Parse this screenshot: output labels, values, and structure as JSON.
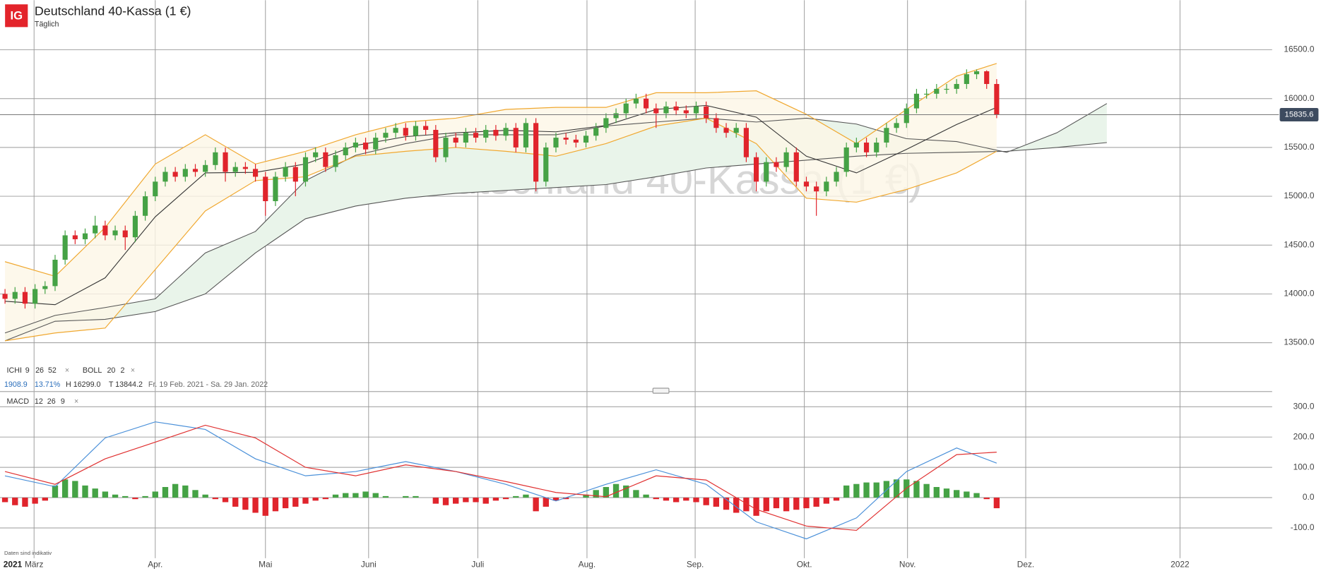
{
  "ui": {
    "logo": "IG",
    "subtitle": "Täglich",
    "year_label": "2021",
    "footer": "Daten sind indikativ",
    "close_icon": "×",
    "ichi": {
      "label": "ICHI",
      "params": [
        9,
        26,
        52
      ]
    },
    "boll": {
      "label": "BOLL",
      "params": [
        20,
        2
      ]
    },
    "macd": {
      "label": "MACD",
      "params": [
        12,
        26,
        9
      ]
    },
    "stats": [
      "1908.9",
      "13.71%",
      "H 16299.0",
      "T 13844.2",
      "Fr. 19 Feb. 2021 - Sa. 29 Jan. 2022"
    ]
  },
  "chart_data": [
    {
      "type": "candlestick",
      "title": "Deutschland 40-Kassa (1 €)",
      "up_color": "#45a245",
      "down_color": "#e0242c",
      "xlim": [
        -0.5,
        126.5
      ],
      "ylim": [
        13000,
        17000
      ],
      "xticks": [
        {
          "value": 2.9,
          "label": "März"
        },
        {
          "value": 15.0,
          "label": "Apr."
        },
        {
          "value": 26.0,
          "label": "Mai"
        },
        {
          "value": 36.3,
          "label": "Juni"
        },
        {
          "value": 47.2,
          "label": "Juli"
        },
        {
          "value": 58.1,
          "label": "Aug."
        },
        {
          "value": 68.9,
          "label": "Sep."
        },
        {
          "value": 79.8,
          "label": "Okt."
        },
        {
          "value": 90.1,
          "label": "Nov."
        },
        {
          "value": 101.9,
          "label": "Dez."
        },
        {
          "value": 117.3,
          "label": "2022"
        }
      ],
      "yticks": [
        {
          "value": 13500,
          "label": "13500.0"
        },
        {
          "value": 14000,
          "label": "14000.0"
        },
        {
          "value": 14500,
          "label": "14500.0"
        },
        {
          "value": 15000,
          "label": "15000.0"
        },
        {
          "value": 15500,
          "label": "15500.0"
        },
        {
          "value": 16000,
          "label": "16000.0"
        },
        {
          "value": 16500,
          "label": "16500.0"
        }
      ],
      "last_price": 15835.6,
      "open": [
        14000,
        13950,
        14020,
        13900,
        14050,
        14080,
        14350,
        14600,
        14560,
        14620,
        14700,
        14600,
        14650,
        14580,
        14800,
        15000,
        15150,
        15250,
        15200,
        15280,
        15250,
        15320,
        15450,
        15250,
        15300,
        15280,
        15200,
        14950,
        15200,
        15300,
        15150,
        15400,
        15450,
        15300,
        15420,
        15500,
        15550,
        15480,
        15600,
        15650,
        15700,
        15620,
        15720,
        15680,
        15400,
        15600,
        15550,
        15650,
        15600,
        15680,
        15620,
        15700,
        15500,
        15750,
        15150,
        15500,
        15600,
        15580,
        15550,
        15620,
        15700,
        15800,
        15850,
        15950,
        16000,
        15900,
        15850,
        15920,
        15880,
        15850,
        15920,
        15800,
        15700,
        15650,
        15700,
        15400,
        15150,
        15350,
        15300,
        15450,
        15150,
        15100,
        15050,
        15150,
        15250,
        15500,
        15550,
        15450,
        15550,
        15700,
        15750,
        15900,
        16050,
        16050,
        16100,
        16100,
        16150,
        16250,
        16280,
        16150
      ],
      "high": [
        14050,
        14070,
        14070,
        14100,
        14130,
        14400,
        14650,
        14650,
        14670,
        14800,
        14750,
        14700,
        14700,
        14850,
        15050,
        15200,
        15300,
        15300,
        15330,
        15330,
        15370,
        15500,
        15500,
        15350,
        15350,
        15330,
        15250,
        15250,
        15350,
        15350,
        15450,
        15500,
        15500,
        15470,
        15550,
        15600,
        15600,
        15650,
        15700,
        15750,
        15750,
        15770,
        15770,
        15730,
        15650,
        15650,
        15700,
        15700,
        15730,
        15730,
        15750,
        15750,
        15800,
        15800,
        15550,
        15650,
        15650,
        15630,
        15670,
        15750,
        15850,
        15900,
        16000,
        16050,
        16050,
        15950,
        15970,
        15970,
        15930,
        15970,
        15970,
        15850,
        15750,
        15750,
        15750,
        15450,
        15400,
        15400,
        15500,
        15500,
        15200,
        15150,
        15200,
        15300,
        15550,
        15600,
        15600,
        15600,
        15750,
        15800,
        15950,
        16100,
        16100,
        16150,
        16150,
        16200,
        16300,
        16299,
        16290,
        16200
      ],
      "low": [
        13900,
        13900,
        13850,
        13850,
        14000,
        14030,
        14300,
        14510,
        14510,
        14570,
        14550,
        14550,
        14450,
        14530,
        14750,
        14950,
        15100,
        15150,
        15150,
        15200,
        15200,
        15270,
        15150,
        15200,
        15230,
        15150,
        14800,
        14900,
        15150,
        15000,
        15100,
        15350,
        15250,
        15250,
        15370,
        15450,
        15430,
        15430,
        15550,
        15600,
        15570,
        15570,
        15630,
        15350,
        15350,
        15500,
        15500,
        15550,
        15550,
        15570,
        15570,
        15450,
        15450,
        15050,
        15100,
        15450,
        15530,
        15500,
        15500,
        15570,
        15650,
        15750,
        15800,
        15900,
        15850,
        15700,
        15800,
        15830,
        15800,
        15800,
        15750,
        15650,
        15600,
        15600,
        15350,
        15050,
        15100,
        15250,
        15250,
        15100,
        15050,
        14800,
        15000,
        15100,
        15200,
        15450,
        15400,
        15400,
        15500,
        15650,
        15700,
        15850,
        16000,
        16000,
        16050,
        16050,
        16100,
        16200,
        16100,
        15800
      ],
      "close": [
        13950,
        14020,
        13900,
        14050,
        14080,
        14350,
        14600,
        14560,
        14620,
        14700,
        14600,
        14650,
        14580,
        14800,
        15000,
        15150,
        15250,
        15200,
        15280,
        15250,
        15320,
        15450,
        15250,
        15300,
        15280,
        15200,
        14950,
        15200,
        15300,
        15150,
        15400,
        15450,
        15300,
        15420,
        15500,
        15550,
        15480,
        15600,
        15650,
        15700,
        15620,
        15720,
        15680,
        15400,
        15600,
        15550,
        15650,
        15600,
        15680,
        15620,
        15700,
        15500,
        15750,
        15150,
        15500,
        15600,
        15580,
        15550,
        15620,
        15700,
        15800,
        15850,
        15950,
        16000,
        15900,
        15850,
        15920,
        15880,
        15850,
        15920,
        15800,
        15700,
        15650,
        15700,
        15400,
        15150,
        15350,
        15300,
        15450,
        15150,
        15100,
        15050,
        15150,
        15250,
        15500,
        15550,
        15450,
        15550,
        15700,
        15750,
        15900,
        16050,
        16050,
        16100,
        16100,
        16150,
        16250,
        16280,
        16150,
        15835.6
      ],
      "bollinger": {
        "color": "#f0a830",
        "middle_color": "#333333",
        "fill": "#fdf6e6",
        "x": [
          0,
          5,
          10,
          15,
          20,
          25,
          30,
          35,
          40,
          45,
          50,
          55,
          60,
          65,
          70,
          75,
          80,
          85,
          90,
          95,
          99
        ],
        "upper": [
          14330,
          14180,
          14680,
          15330,
          15630,
          15330,
          15460,
          15630,
          15760,
          15800,
          15890,
          15910,
          15910,
          16060,
          16060,
          16080,
          15840,
          15540,
          15890,
          16230,
          16360
        ],
        "middle": [
          13925,
          13890,
          14165,
          14790,
          15240,
          15245,
          15330,
          15520,
          15610,
          15650,
          15675,
          15660,
          15725,
          15890,
          15930,
          15810,
          15410,
          15240,
          15480,
          15735,
          15910
        ],
        "lower": [
          13520,
          13600,
          13650,
          14250,
          14850,
          15160,
          15200,
          15410,
          15460,
          15500,
          15460,
          15410,
          15540,
          15720,
          15800,
          15540,
          14980,
          14940,
          15070,
          15240,
          15460
        ]
      },
      "ichimoku": {
        "color": "#555555",
        "fill": "#e9f4ea",
        "x": [
          0,
          5,
          10,
          15,
          20,
          25,
          30,
          35,
          40,
          45,
          50,
          55,
          60,
          65,
          70,
          75,
          80,
          85,
          90,
          95,
          100,
          105,
          110
        ],
        "span_a": [
          13600,
          13780,
          13860,
          13950,
          14420,
          14640,
          15160,
          15420,
          15540,
          15630,
          15630,
          15630,
          15720,
          15760,
          15800,
          15760,
          15800,
          15740,
          15590,
          15560,
          15450,
          15650,
          15950
        ],
        "span_b": [
          13520,
          13720,
          13740,
          13820,
          14000,
          14420,
          14770,
          14900,
          14980,
          15030,
          15060,
          15090,
          15120,
          15200,
          15290,
          15330,
          15370,
          15410,
          15440,
          15450,
          15460,
          15500,
          15550
        ]
      }
    },
    {
      "type": "macd",
      "xlim": [
        -0.5,
        126.5
      ],
      "ylim": [
        -200,
        350
      ],
      "yticks": [
        {
          "value": -100,
          "label": "-100.0"
        },
        {
          "value": 0,
          "label": "0.0"
        },
        {
          "value": 100,
          "label": "100.0"
        },
        {
          "value": 200,
          "label": "200.0"
        },
        {
          "value": 300,
          "label": "300.0"
        }
      ],
      "histogram": [
        -15,
        -25,
        -30,
        -20,
        -10,
        40,
        60,
        55,
        40,
        30,
        20,
        10,
        5,
        -5,
        5,
        20,
        35,
        45,
        40,
        25,
        10,
        -5,
        -15,
        -30,
        -40,
        -50,
        -60,
        -45,
        -35,
        -30,
        -20,
        -10,
        -5,
        10,
        15,
        15,
        20,
        15,
        5,
        0,
        5,
        5,
        0,
        -20,
        -25,
        -20,
        -15,
        -15,
        -20,
        -10,
        -5,
        5,
        10,
        -45,
        -30,
        -10,
        -5,
        0,
        10,
        25,
        35,
        45,
        40,
        25,
        10,
        -5,
        -10,
        -15,
        -10,
        -15,
        -25,
        -30,
        -40,
        -50,
        -45,
        -60,
        -45,
        -35,
        -45,
        -40,
        -35,
        -30,
        -20,
        -10,
        40,
        45,
        50,
        50,
        55,
        60,
        60,
        55,
        45,
        35,
        30,
        25,
        20,
        15,
        -5,
        -35
      ],
      "pos_color": "#45a245",
      "neg_color": "#e0242c",
      "x": [
        0,
        5,
        10,
        15,
        20,
        25,
        30,
        35,
        40,
        45,
        50,
        55,
        60,
        65,
        70,
        75,
        80,
        85,
        90,
        95,
        99
      ],
      "series": [
        {
          "color": "#4a90d9",
          "values": [
            72,
            36,
            197,
            250,
            225,
            128,
            72,
            86,
            119,
            86,
            44,
            -11,
            44,
            92,
            44,
            -80,
            -136,
            -67,
            86,
            164,
            114
          ]
        },
        {
          "color": "#e03030",
          "values": [
            86,
            44,
            128,
            183,
            239,
            197,
            100,
            72,
            108,
            86,
            53,
            17,
            3,
            72,
            58,
            -39,
            -94,
            -108,
            31,
            142,
            150
          ]
        }
      ]
    }
  ]
}
